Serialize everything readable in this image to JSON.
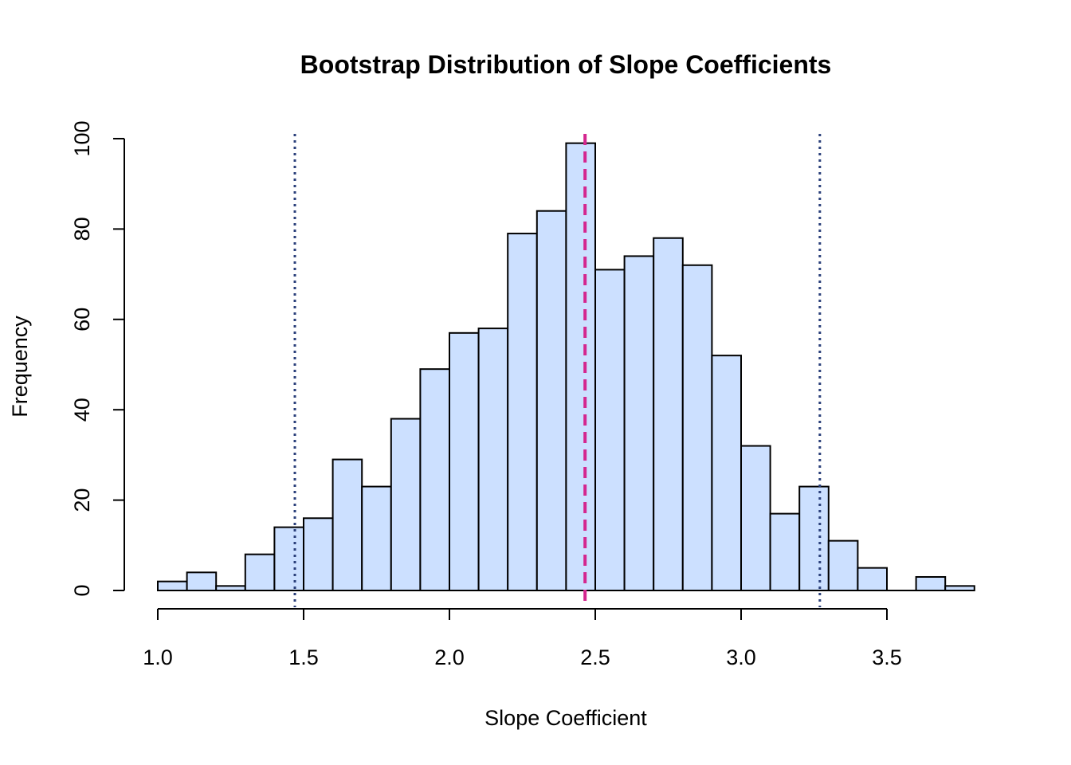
{
  "chart_data": {
    "type": "bar",
    "title": "Bootstrap Distribution of Slope Coefficients",
    "xlabel": "Slope Coefficient",
    "ylabel": "Frequency",
    "bin_width": 0.1,
    "bin_starts": [
      1.0,
      1.1,
      1.2,
      1.3,
      1.4,
      1.5,
      1.6,
      1.7,
      1.8,
      1.9,
      2.0,
      2.1,
      2.2,
      2.3,
      2.4,
      2.5,
      2.6,
      2.7,
      2.8,
      2.9,
      3.0,
      3.1,
      3.2,
      3.3,
      3.4,
      3.5,
      3.6,
      3.7
    ],
    "values": [
      2,
      4,
      1,
      8,
      14,
      16,
      29,
      23,
      38,
      49,
      57,
      58,
      79,
      84,
      99,
      71,
      74,
      78,
      72,
      52,
      32,
      17,
      23,
      11,
      5,
      0,
      3,
      1
    ],
    "xlim": [
      1.0,
      3.8
    ],
    "ylim": [
      0,
      100
    ],
    "x_ticks": [
      "1.0",
      "1.5",
      "2.0",
      "2.5",
      "3.0",
      "3.5"
    ],
    "y_ticks": [
      "0",
      "20",
      "40",
      "60",
      "80",
      "100"
    ],
    "reference_lines": [
      {
        "value": 2.465,
        "style": "dashed",
        "color": "#d4278f"
      },
      {
        "value": 1.47,
        "style": "dotted",
        "color": "#2a3f7a"
      },
      {
        "value": 3.27,
        "style": "dotted",
        "color": "#2a3f7a"
      }
    ],
    "bar_color": "#cce0ff"
  }
}
